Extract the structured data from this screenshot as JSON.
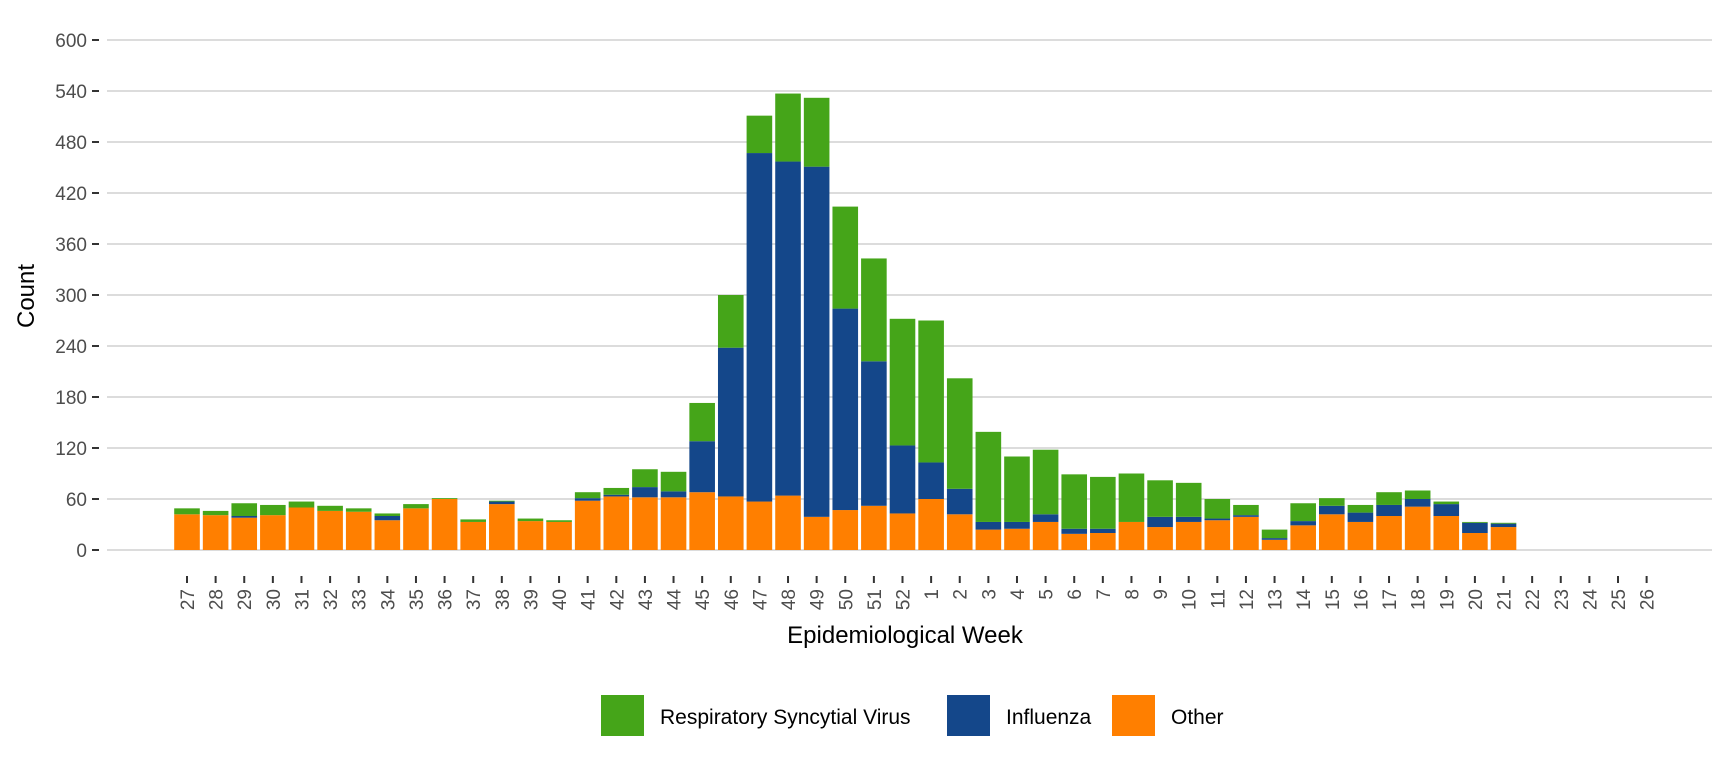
{
  "chart_data": {
    "type": "bar",
    "stacked": true,
    "title": "",
    "xlabel": "Epidemiological Week",
    "ylabel": "Count",
    "ylim": [
      0,
      600
    ],
    "yticks": [
      0,
      60,
      120,
      180,
      240,
      300,
      360,
      420,
      480,
      540,
      600
    ],
    "grid": true,
    "legend_position": "bottom",
    "categories": [
      "27",
      "28",
      "29",
      "30",
      "31",
      "32",
      "33",
      "34",
      "35",
      "36",
      "37",
      "38",
      "39",
      "40",
      "41",
      "42",
      "43",
      "44",
      "45",
      "46",
      "47",
      "48",
      "49",
      "50",
      "51",
      "52",
      "1",
      "2",
      "3",
      "4",
      "5",
      "6",
      "7",
      "8",
      "9",
      "10",
      "11",
      "12",
      "13",
      "14",
      "15",
      "16",
      "17",
      "18",
      "19",
      "20",
      "21",
      "22",
      "23",
      "24",
      "25",
      "26"
    ],
    "series": [
      {
        "name": "Other",
        "color": "#ff7f00",
        "values": [
          42,
          41,
          38,
          41,
          50,
          46,
          45,
          35,
          49,
          60,
          33,
          54,
          34,
          33,
          58,
          63,
          62,
          62,
          68,
          63,
          57,
          64,
          39,
          47,
          52,
          43,
          60,
          42,
          24,
          25,
          33,
          19,
          20,
          33,
          27,
          33,
          35,
          39,
          12,
          29,
          42,
          33,
          40,
          51,
          40,
          20,
          27,
          0,
          0,
          0,
          0,
          0
        ]
      },
      {
        "name": "Influenza",
        "color": "#14478a",
        "values": [
          0,
          0,
          2,
          0,
          0,
          0,
          0,
          5,
          0,
          0,
          0,
          3,
          0,
          0,
          3,
          2,
          12,
          7,
          60,
          175,
          410,
          393,
          412,
          237,
          170,
          80,
          43,
          30,
          9,
          8,
          9,
          6,
          5,
          0,
          12,
          6,
          2,
          2,
          2,
          5,
          10,
          11,
          13,
          9,
          14,
          12,
          4,
          0,
          0,
          0,
          0,
          0
        ]
      },
      {
        "name": "Respiratory Syncytial Virus",
        "color": "#45a519",
        "values": [
          7,
          5,
          15,
          12,
          7,
          6,
          4,
          3,
          5,
          1,
          3,
          1,
          3,
          2,
          7,
          8,
          21,
          23,
          45,
          62,
          44,
          80,
          81,
          120,
          121,
          149,
          167,
          130,
          106,
          77,
          76,
          64,
          61,
          57,
          43,
          40,
          23,
          12,
          10,
          21,
          9,
          9,
          15,
          10,
          3,
          1,
          1,
          0,
          0,
          0,
          0,
          0
        ]
      }
    ],
    "legend": [
      {
        "label": "Respiratory Syncytial Virus",
        "color": "#45a519"
      },
      {
        "label": "Influenza",
        "color": "#14478a"
      },
      {
        "label": "Other",
        "color": "#ff7f00"
      }
    ]
  }
}
